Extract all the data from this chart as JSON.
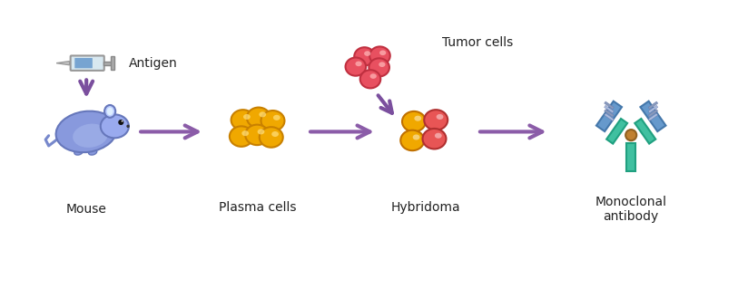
{
  "bg_color": "#ffffff",
  "purple": "#7B4F9E",
  "arrow_color": "#8B5CA8",
  "labels": {
    "antigen": "Antigen",
    "mouse": "Mouse",
    "plasma": "Plasma cells",
    "hybridoma": "Hybridoma",
    "tumor": "Tumor cells",
    "monoclonal": "Monoclonal\nantibody"
  },
  "label_fontsize": 10,
  "figsize": [
    8.13,
    3.4
  ],
  "dpi": 100
}
